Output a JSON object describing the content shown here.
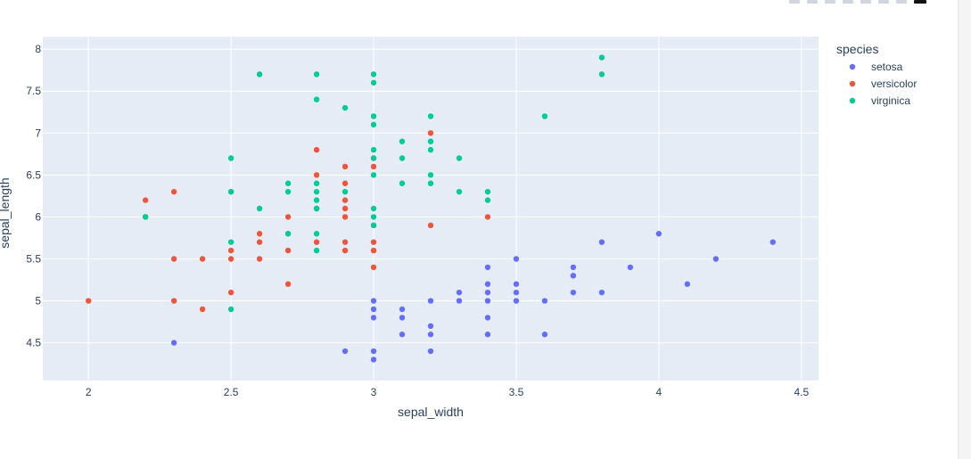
{
  "chart_data": {
    "type": "scatter",
    "title": "",
    "xlabel": "sepal_width",
    "ylabel": "sepal_length",
    "xlim": [
      1.84,
      4.56
    ],
    "ylim": [
      4.05,
      8.15
    ],
    "x_ticks": [
      2,
      2.5,
      3,
      3.5,
      4,
      4.5
    ],
    "x_tick_labels": [
      "2",
      "2.5",
      "3",
      "3.5",
      "4",
      "4.5"
    ],
    "y_ticks": [
      4.5,
      5,
      5.5,
      6,
      6.5,
      7,
      7.5,
      8
    ],
    "y_tick_labels": [
      "4.5",
      "5",
      "5.5",
      "6",
      "6.5",
      "7",
      "7.5",
      "8"
    ],
    "grid": true,
    "legend_title": "species",
    "legend_position": "right",
    "plot_bgcolor": "#E5ECF6",
    "series": [
      {
        "name": "setosa",
        "color": "#636EFA",
        "points": [
          [
            2.3,
            4.5
          ],
          [
            2.9,
            4.4
          ],
          [
            3.0,
            4.4
          ],
          [
            3.0,
            4.3
          ],
          [
            3.0,
            4.8
          ],
          [
            3.0,
            4.9
          ],
          [
            3.0,
            5.0
          ],
          [
            3.1,
            4.9
          ],
          [
            3.1,
            4.8
          ],
          [
            3.1,
            4.6
          ],
          [
            3.2,
            4.7
          ],
          [
            3.2,
            4.6
          ],
          [
            3.2,
            4.4
          ],
          [
            3.2,
            5.0
          ],
          [
            3.3,
            5.0
          ],
          [
            3.3,
            5.1
          ],
          [
            3.4,
            4.6
          ],
          [
            3.4,
            4.8
          ],
          [
            3.4,
            5.0
          ],
          [
            3.4,
            5.1
          ],
          [
            3.4,
            5.2
          ],
          [
            3.4,
            5.4
          ],
          [
            3.5,
            5.0
          ],
          [
            3.5,
            5.1
          ],
          [
            3.5,
            5.2
          ],
          [
            3.5,
            5.5
          ],
          [
            3.6,
            4.6
          ],
          [
            3.6,
            5.0
          ],
          [
            3.7,
            5.1
          ],
          [
            3.7,
            5.3
          ],
          [
            3.7,
            5.4
          ],
          [
            3.8,
            5.1
          ],
          [
            3.8,
            5.7
          ],
          [
            3.9,
            5.4
          ],
          [
            4.0,
            5.8
          ],
          [
            4.1,
            5.2
          ],
          [
            4.2,
            5.5
          ],
          [
            4.4,
            5.7
          ]
        ]
      },
      {
        "name": "versicolor",
        "color": "#EF553B",
        "points": [
          [
            2.0,
            5.0
          ],
          [
            2.2,
            6.2
          ],
          [
            2.2,
            6.0
          ],
          [
            2.3,
            6.3
          ],
          [
            2.3,
            5.5
          ],
          [
            2.3,
            5.0
          ],
          [
            2.4,
            5.5
          ],
          [
            2.4,
            4.9
          ],
          [
            2.5,
            5.6
          ],
          [
            2.5,
            5.5
          ],
          [
            2.5,
            5.1
          ],
          [
            2.5,
            6.3
          ],
          [
            2.6,
            5.8
          ],
          [
            2.6,
            5.7
          ],
          [
            2.6,
            5.5
          ],
          [
            2.7,
            6.0
          ],
          [
            2.7,
            5.8
          ],
          [
            2.7,
            5.6
          ],
          [
            2.7,
            5.2
          ],
          [
            2.8,
            6.8
          ],
          [
            2.8,
            6.5
          ],
          [
            2.8,
            6.1
          ],
          [
            2.8,
            5.7
          ],
          [
            2.9,
            6.6
          ],
          [
            2.9,
            6.4
          ],
          [
            2.9,
            6.2
          ],
          [
            2.9,
            6.1
          ],
          [
            2.9,
            6.0
          ],
          [
            2.9,
            5.7
          ],
          [
            2.9,
            5.6
          ],
          [
            3.0,
            6.7
          ],
          [
            3.0,
            6.6
          ],
          [
            3.0,
            5.9
          ],
          [
            3.0,
            5.7
          ],
          [
            3.0,
            5.6
          ],
          [
            3.0,
            5.4
          ],
          [
            3.2,
            7.0
          ],
          [
            3.2,
            5.9
          ],
          [
            3.4,
            6.0
          ]
        ]
      },
      {
        "name": "virginica",
        "color": "#00CC96",
        "points": [
          [
            2.2,
            6.0
          ],
          [
            2.5,
            6.7
          ],
          [
            2.5,
            6.3
          ],
          [
            2.5,
            5.7
          ],
          [
            2.5,
            4.9
          ],
          [
            2.6,
            7.7
          ],
          [
            2.6,
            6.1
          ],
          [
            2.7,
            6.4
          ],
          [
            2.7,
            6.3
          ],
          [
            2.7,
            5.8
          ],
          [
            2.8,
            7.7
          ],
          [
            2.8,
            7.4
          ],
          [
            2.8,
            6.4
          ],
          [
            2.8,
            6.3
          ],
          [
            2.8,
            6.2
          ],
          [
            2.8,
            6.1
          ],
          [
            2.8,
            5.8
          ],
          [
            2.8,
            5.6
          ],
          [
            2.9,
            7.3
          ],
          [
            2.9,
            6.3
          ],
          [
            3.0,
            7.7
          ],
          [
            3.0,
            7.6
          ],
          [
            3.0,
            7.2
          ],
          [
            3.0,
            7.1
          ],
          [
            3.0,
            6.8
          ],
          [
            3.0,
            6.7
          ],
          [
            3.0,
            6.5
          ],
          [
            3.0,
            6.1
          ],
          [
            3.0,
            6.0
          ],
          [
            3.0,
            5.9
          ],
          [
            3.1,
            6.9
          ],
          [
            3.1,
            6.7
          ],
          [
            3.1,
            6.4
          ],
          [
            3.2,
            7.2
          ],
          [
            3.2,
            6.9
          ],
          [
            3.2,
            6.8
          ],
          [
            3.2,
            6.5
          ],
          [
            3.2,
            6.4
          ],
          [
            3.3,
            6.7
          ],
          [
            3.3,
            6.3
          ],
          [
            3.4,
            6.3
          ],
          [
            3.4,
            6.2
          ],
          [
            3.6,
            7.2
          ],
          [
            3.8,
            7.9
          ],
          [
            3.8,
            7.7
          ]
        ]
      }
    ]
  }
}
